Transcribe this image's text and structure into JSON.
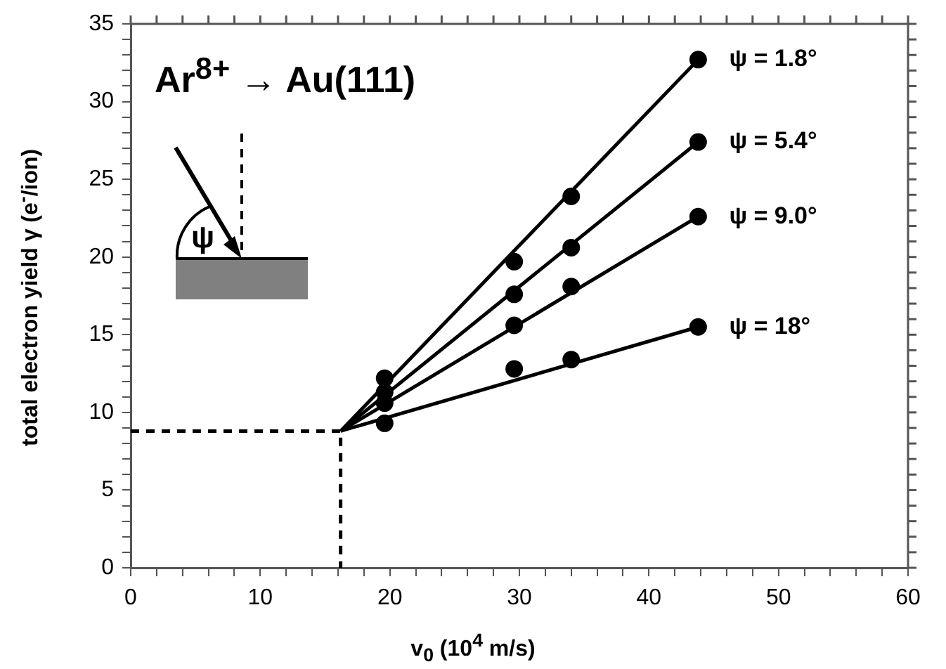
{
  "chart_data": {
    "type": "scatter",
    "title": "Ar$^{8+}$ → Au(111)",
    "xlabel": "v$_{0}$ (10$^{4}$ m/s)",
    "ylabel": "total electron yield γ (e$^{-}$/ion)",
    "annotations": [
      "ψ"
    ],
    "xlim": [
      0,
      60
    ],
    "ylim": [
      0,
      35
    ],
    "xticks": [
      0,
      {
        "value": 2,
        "label": null
      },
      {
        "value": 4,
        "label": null
      },
      {
        "value": 6,
        "label": null
      },
      {
        "value": 8,
        "label": null
      },
      10,
      {
        "value": 12,
        "label": null
      },
      {
        "value": 14,
        "label": null
      },
      {
        "value": 16,
        "label": null
      },
      {
        "value": 18,
        "label": null
      },
      20,
      {
        "value": 22,
        "label": null
      },
      {
        "value": 24,
        "label": null
      },
      {
        "value": 26,
        "label": null
      },
      {
        "value": 28,
        "label": null
      },
      30,
      {
        "value": 32,
        "label": null
      },
      {
        "value": 34,
        "label": null
      },
      {
        "value": 36,
        "label": null
      },
      {
        "value": 38,
        "label": null
      },
      40,
      {
        "value": 42,
        "label": null
      },
      {
        "value": 44,
        "label": null
      },
      {
        "value": 46,
        "label": null
      },
      {
        "value": 48,
        "label": null
      },
      50,
      {
        "value": 52,
        "label": null
      },
      {
        "value": 54,
        "label": null
      },
      {
        "value": 56,
        "label": null
      },
      {
        "value": 58,
        "label": null
      },
      60
    ],
    "yticks": [
      0,
      {
        "value": 1,
        "label": null
      },
      {
        "value": 2,
        "label": null
      },
      {
        "value": 3,
        "label": null
      },
      {
        "value": 4,
        "label": null
      },
      5,
      {
        "value": 6,
        "label": null
      },
      {
        "value": 7,
        "label": null
      },
      {
        "value": 8,
        "label": null
      },
      {
        "value": 9,
        "label": null
      },
      10,
      {
        "value": 11,
        "label": null
      },
      {
        "value": 12,
        "label": null
      },
      {
        "value": 13,
        "label": null
      },
      {
        "value": 14,
        "label": null
      },
      15,
      {
        "value": 16,
        "label": null
      },
      {
        "value": 17,
        "label": null
      },
      {
        "value": 18,
        "label": null
      },
      {
        "value": 19,
        "label": null
      },
      20,
      {
        "value": 21,
        "label": null
      },
      {
        "value": 22,
        "label": null
      },
      {
        "value": 23,
        "label": null
      },
      {
        "value": 24,
        "label": null
      },
      25,
      {
        "value": 26,
        "label": null
      },
      {
        "value": 27,
        "label": null
      },
      {
        "value": 28,
        "label": null
      },
      {
        "value": 29,
        "label": null
      },
      30,
      {
        "value": 31,
        "label": null
      },
      {
        "value": 32,
        "label": null
      },
      {
        "value": 33,
        "label": null
      },
      {
        "value": 34,
        "label": null
      },
      35
    ],
    "grid": false,
    "legend": false,
    "marker": "circle",
    "series": [
      {
        "name": "ψ = 1.8°",
        "color": "#000000",
        "x": [
          19.6,
          29.6,
          34,
          43.8
        ],
        "values": [
          12.2,
          19.7,
          23.9,
          32.7
        ]
      },
      {
        "name": "ψ = 5.4°",
        "color": "#000000",
        "x": [
          19.6,
          29.6,
          34,
          43.8
        ],
        "values": [
          11.3,
          17.6,
          20.6,
          27.4
        ]
      },
      {
        "name": "ψ = 9.0°",
        "color": "#000000",
        "x": [
          19.6,
          29.6,
          34,
          43.8
        ],
        "values": [
          10.6,
          15.6,
          18.1,
          22.6
        ]
      },
      {
        "name": "ψ = 18°",
        "color": "#000000",
        "x": [
          19.6,
          29.6,
          34,
          43.8
        ],
        "values": [
          9.3,
          12.8,
          13.4,
          15.5
        ]
      },
      {
        "type": "line",
        "color": "#000000",
        "marker": "none",
        "x": [
          16.2,
          43.8
        ],
        "values": [
          8.8,
          32.7
        ]
      },
      {
        "type": "line",
        "color": "#000000",
        "marker": "none",
        "x": [
          16.2,
          43.8
        ],
        "values": [
          8.8,
          27.4
        ]
      },
      {
        "type": "line",
        "color": "#000000",
        "marker": "none",
        "x": [
          16.2,
          43.8
        ],
        "values": [
          8.8,
          22.6
        ]
      },
      {
        "type": "line",
        "color": "#000000",
        "marker": "none",
        "x": [
          16.2,
          43.8
        ],
        "values": [
          8.8,
          15.5
        ]
      },
      {
        "type": "line",
        "color": "#000000",
        "marker": "none",
        "line_style": "dashed",
        "x": [
          0,
          16.2,
          16.2
        ],
        "values": [
          8.8,
          8.8,
          0
        ]
      }
    ]
  }
}
